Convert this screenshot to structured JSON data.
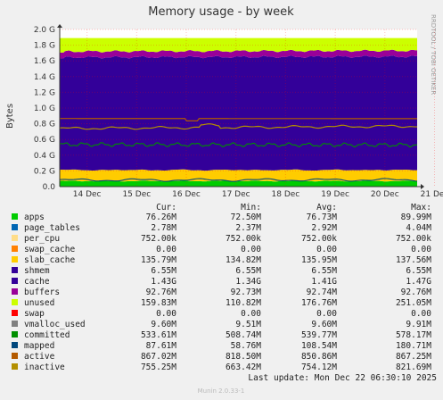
{
  "chart_data": {
    "type": "area",
    "title": "Memory usage - by week",
    "ylabel": "Bytes",
    "side_label": "RRDTOOL / TOBI OETIKER",
    "ylim": [
      0,
      2.0
    ],
    "y_ticks": [
      "0.0",
      "0.2 G",
      "0.4 G",
      "0.6 G",
      "0.8 G",
      "1.0 G",
      "1.2 G",
      "1.4 G",
      "1.6 G",
      "1.8 G",
      "2.0 G"
    ],
    "x_ticks": [
      "14 Dec",
      "15 Dec",
      "16 Dec",
      "17 Dec",
      "18 Dec",
      "19 Dec",
      "20 Dec",
      "21 Dec"
    ],
    "grid": true,
    "stack_top": {
      "start": 1.72,
      "end": 1.73
    },
    "unused_top": 1.89,
    "committed_level": {
      "start": 0.536,
      "end": 0.53
    },
    "mapped_level": {
      "start": 0.083,
      "end": 0.086
    },
    "active_level": {
      "start": 0.867,
      "end": 0.865
    },
    "inactive_level": {
      "start": 0.74,
      "end": 0.77
    },
    "apps_band": 0.071,
    "columns": [
      "",
      "Cur:",
      "Min:",
      "Avg:",
      "Max:"
    ],
    "series": [
      {
        "name": "apps",
        "color": "#00cc00",
        "cur": "76.26M",
        "min": "72.50M",
        "avg": "76.73M",
        "max": "89.99M"
      },
      {
        "name": "page_tables",
        "color": "#0066b3",
        "cur": "2.78M",
        "min": "2.37M",
        "avg": "2.92M",
        "max": "4.04M"
      },
      {
        "name": "per_cpu",
        "color": "#ffdd88",
        "cur": "752.00k",
        "min": "752.00k",
        "avg": "752.00k",
        "max": "752.00k"
      },
      {
        "name": "swap_cache",
        "color": "#ff8000",
        "cur": "0.00",
        "min": "0.00",
        "avg": "0.00",
        "max": "0.00"
      },
      {
        "name": "slab_cache",
        "color": "#ffcc00",
        "cur": "135.79M",
        "min": "134.82M",
        "avg": "135.95M",
        "max": "137.56M"
      },
      {
        "name": "shmem",
        "color": "#330099",
        "cur": "6.55M",
        "min": "6.55M",
        "avg": "6.55M",
        "max": "6.55M"
      },
      {
        "name": "cache",
        "color": "#330099",
        "cur": "1.43G",
        "min": "1.34G",
        "avg": "1.41G",
        "max": "1.47G"
      },
      {
        "name": "buffers",
        "color": "#990099",
        "cur": "92.76M",
        "min": "92.73M",
        "avg": "92.74M",
        "max": "92.76M"
      },
      {
        "name": "unused",
        "color": "#ccff00",
        "cur": "159.83M",
        "min": "110.82M",
        "avg": "176.76M",
        "max": "251.05M"
      },
      {
        "name": "swap",
        "color": "#ff0000",
        "cur": "0.00",
        "min": "0.00",
        "avg": "0.00",
        "max": "0.00"
      },
      {
        "name": "vmalloc_used",
        "color": "#808080",
        "cur": "9.60M",
        "min": "9.51M",
        "avg": "9.60M",
        "max": "9.91M"
      },
      {
        "name": "committed",
        "color": "#008f00",
        "cur": "533.61M",
        "min": "508.74M",
        "avg": "539.77M",
        "max": "578.17M"
      },
      {
        "name": "mapped",
        "color": "#00487d",
        "cur": "87.61M",
        "min": "58.76M",
        "avg": "108.54M",
        "max": "180.71M"
      },
      {
        "name": "active",
        "color": "#b35a00",
        "cur": "867.02M",
        "min": "818.50M",
        "avg": "850.86M",
        "max": "867.25M"
      },
      {
        "name": "inactive",
        "color": "#b38f00",
        "cur": "755.25M",
        "min": "663.42M",
        "avg": "754.12M",
        "max": "821.69M"
      }
    ],
    "last_update": "Last update:  Mon Dec 22 06:30:10 2025",
    "footer": "Munin 2.0.33-1"
  }
}
